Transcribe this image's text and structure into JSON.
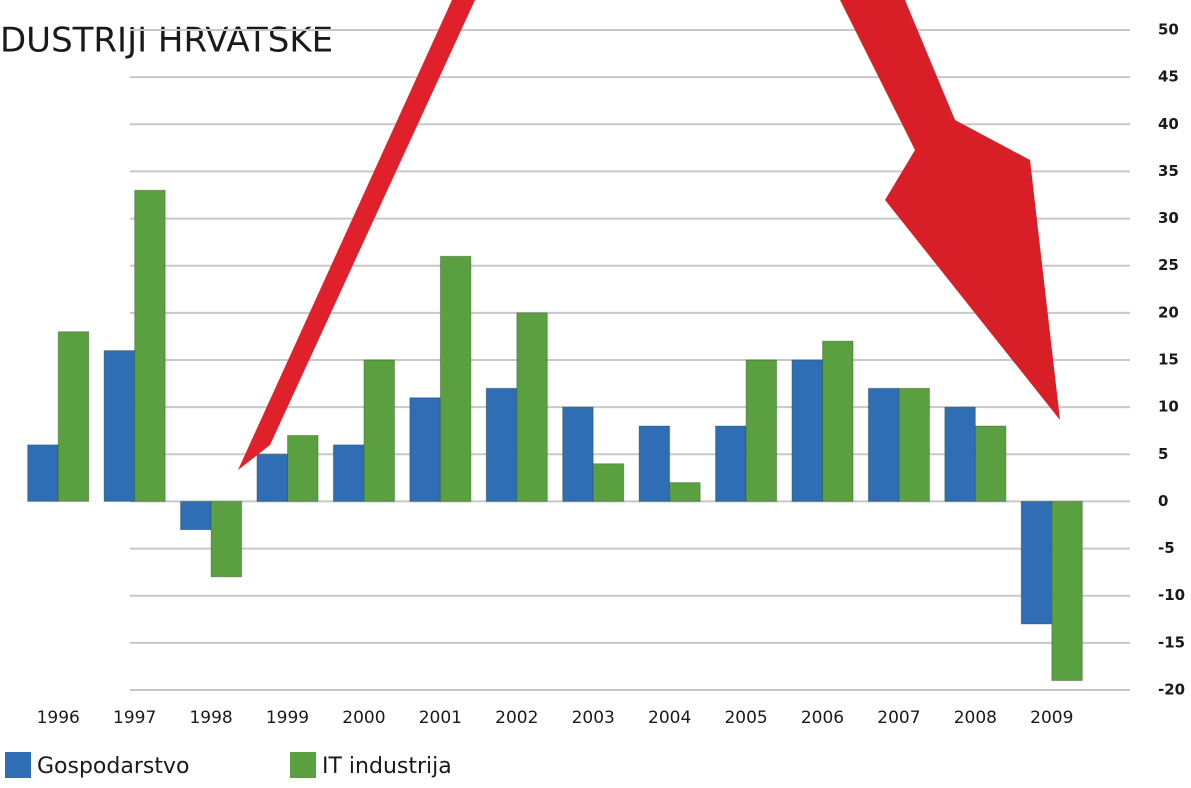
{
  "chart_data": {
    "type": "bar",
    "title": "DUSTRIJI HRVATSKE",
    "categories": [
      "1996",
      "1997",
      "1998",
      "1999",
      "2000",
      "2001",
      "2002",
      "2003",
      "2004",
      "2005",
      "2006",
      "2007",
      "2008",
      "2009"
    ],
    "series": [
      {
        "name": "Gospodarstvo",
        "color": "#2f6db5",
        "values": [
          6,
          16,
          -3,
          5,
          6,
          11,
          12,
          10,
          8,
          8,
          15,
          12,
          10,
          -13
        ]
      },
      {
        "name": "IT industrija",
        "color": "#5aa041",
        "values": [
          18,
          33,
          -8,
          7,
          15,
          26,
          20,
          4,
          2,
          15,
          17,
          12,
          8,
          -19
        ]
      }
    ],
    "ylim": [
      -20,
      50
    ],
    "yticks": [
      -20,
      -15,
      -10,
      -5,
      0,
      5,
      10,
      15,
      20,
      25,
      30,
      35,
      40,
      45,
      50
    ],
    "grid": true
  }
}
